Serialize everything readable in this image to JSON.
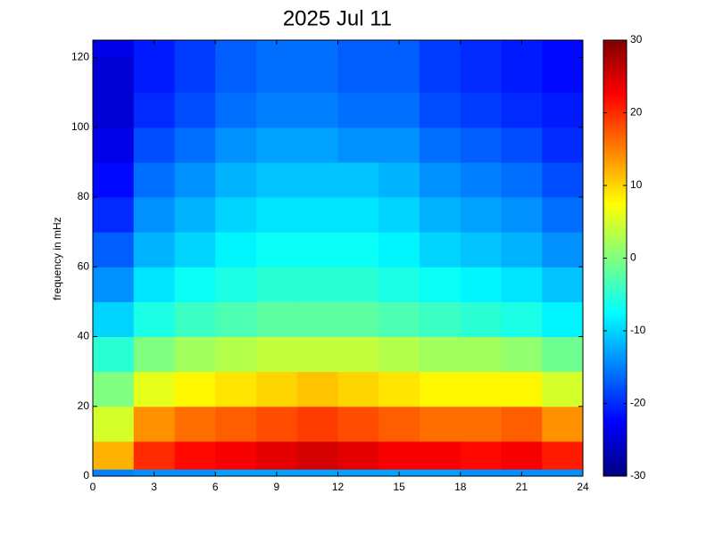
{
  "chart_data": {
    "type": "heatmap",
    "title": "2025 Jul 11",
    "y_label": "frequency in mHz",
    "colormap": "jet",
    "x_edges": [
      0,
      2,
      4,
      6,
      8,
      10,
      12,
      14,
      16,
      18,
      20,
      22,
      24
    ],
    "y_edges": [
      0,
      2,
      10,
      20,
      30,
      40,
      50,
      60,
      70,
      80,
      90,
      100,
      110,
      120,
      125
    ],
    "z": [
      [
        -15,
        -14,
        -14,
        -13,
        -13,
        -13,
        -13,
        -13,
        -13,
        -14,
        -14,
        -14
      ],
      [
        12,
        20,
        22,
        23,
        24,
        25,
        24,
        23,
        23,
        22,
        23,
        21
      ],
      [
        5,
        14,
        16,
        17,
        18,
        19,
        18,
        17,
        16,
        16,
        17,
        14
      ],
      [
        0,
        6,
        8,
        9,
        10,
        11,
        10,
        9,
        8,
        8,
        8,
        5
      ],
      [
        -5,
        0,
        2,
        3,
        4,
        4,
        4,
        3,
        2,
        2,
        1,
        -1
      ],
      [
        -10,
        -6,
        -4,
        -3,
        -2,
        -2,
        -2,
        -3,
        -4,
        -5,
        -6,
        -8
      ],
      [
        -14,
        -9,
        -7,
        -6,
        -5,
        -5,
        -5,
        -6,
        -7,
        -8,
        -9,
        -11
      ],
      [
        -17,
        -12,
        -10,
        -8,
        -7,
        -7,
        -7,
        -8,
        -10,
        -11,
        -12,
        -14
      ],
      [
        -20,
        -14,
        -12,
        -10,
        -9,
        -9,
        -9,
        -10,
        -12,
        -13,
        -14,
        -16
      ],
      [
        -22,
        -16,
        -14,
        -12,
        -11,
        -11,
        -11,
        -12,
        -14,
        -15,
        -16,
        -18
      ],
      [
        -24,
        -18,
        -16,
        -14,
        -13,
        -13,
        -14,
        -14,
        -16,
        -17,
        -18,
        -20
      ],
      [
        -25,
        -20,
        -18,
        -16,
        -15,
        -15,
        -16,
        -16,
        -18,
        -19,
        -20,
        -21
      ],
      [
        -25,
        -21,
        -19,
        -17,
        -16,
        -16,
        -17,
        -17,
        -19,
        -20,
        -21,
        -22
      ],
      [
        -24,
        -21,
        -19,
        -17,
        -16,
        -16,
        -17,
        -17,
        -19,
        -20,
        -21,
        -22
      ]
    ],
    "xlim": [
      0,
      24
    ],
    "xticks": [
      0,
      3,
      6,
      9,
      12,
      15,
      18,
      21,
      24
    ],
    "ylim": [
      0,
      125
    ],
    "yticks": [
      0,
      20,
      40,
      60,
      80,
      100,
      120
    ],
    "clim": [
      -30,
      30
    ],
    "cticks": [
      -30,
      -20,
      -10,
      0,
      10,
      20,
      30
    ]
  }
}
